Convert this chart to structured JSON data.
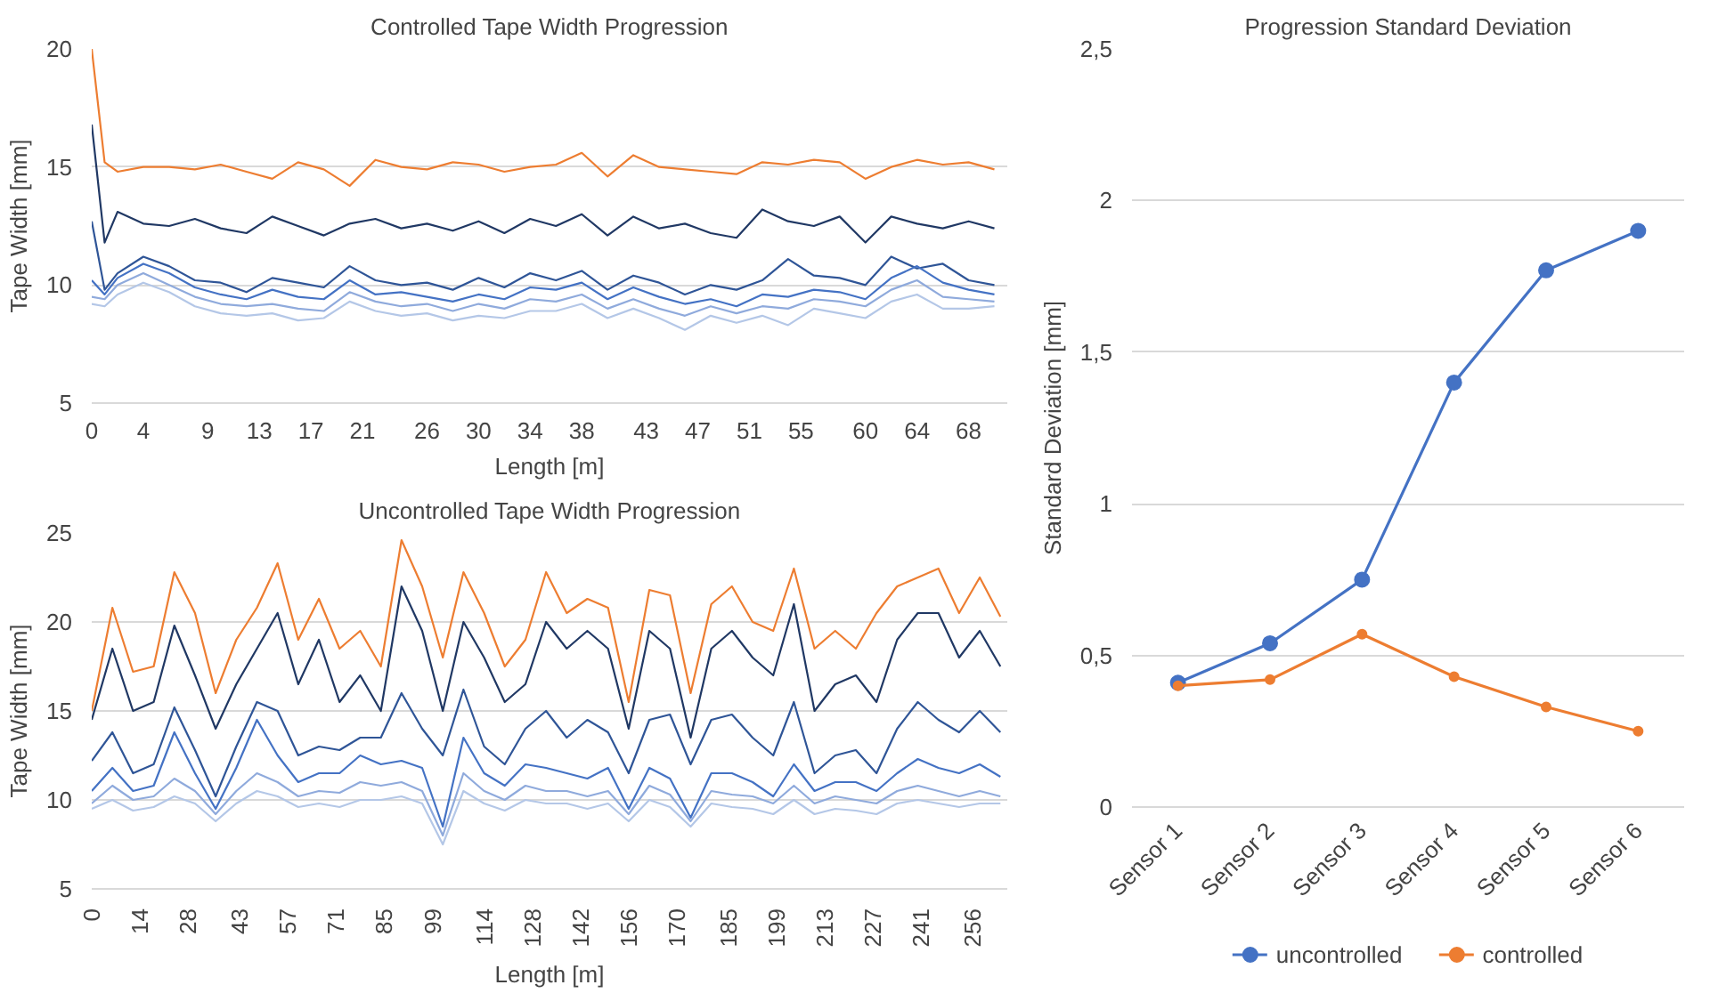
{
  "chart_data": [
    {
      "type": "line",
      "title": "Controlled Tape Width Progression",
      "xlabel": "Length [m]",
      "ylabel": "Tape Width [mm]",
      "xlim": [
        0,
        71
      ],
      "xticks": [
        0,
        4,
        9,
        13,
        17,
        21,
        26,
        30,
        34,
        38,
        43,
        47,
        51,
        55,
        60,
        64,
        68
      ],
      "ylim": [
        5,
        20
      ],
      "yticks": [
        5,
        10,
        15,
        20
      ],
      "grid": "y",
      "legend": false,
      "marker": "none",
      "line_style": "solid",
      "x": [
        0,
        1,
        2,
        4,
        6,
        8,
        10,
        12,
        14,
        16,
        18,
        20,
        22,
        24,
        26,
        28,
        30,
        32,
        34,
        36,
        38,
        40,
        42,
        44,
        46,
        48,
        50,
        52,
        54,
        56,
        58,
        60,
        62,
        64,
        66,
        68,
        70
      ],
      "series": [
        {
          "color": "#ed7d31",
          "values": [
            20,
            15.2,
            14.8,
            15,
            15,
            14.9,
            15.1,
            14.8,
            14.5,
            15.2,
            14.9,
            14.2,
            15.3,
            15,
            14.9,
            15.2,
            15.1,
            14.8,
            15,
            15.1,
            15.6,
            14.6,
            15.5,
            15,
            14.9,
            14.8,
            14.7,
            15.2,
            15.1,
            15.3,
            15.2,
            14.5,
            15,
            15.3,
            15.1,
            15.2,
            14.9
          ]
        },
        {
          "color": "#203864",
          "values": [
            16.8,
            11.8,
            13.1,
            12.6,
            12.5,
            12.8,
            12.4,
            12.2,
            12.9,
            12.5,
            12.1,
            12.6,
            12.8,
            12.4,
            12.6,
            12.3,
            12.7,
            12.2,
            12.8,
            12.5,
            13,
            12.1,
            12.9,
            12.4,
            12.6,
            12.2,
            12,
            13.2,
            12.7,
            12.5,
            12.9,
            11.8,
            12.9,
            12.6,
            12.4,
            12.7,
            12.4
          ]
        },
        {
          "color": "#2f5597",
          "values": [
            12.7,
            9.8,
            10.5,
            11.2,
            10.8,
            10.2,
            10.1,
            9.7,
            10.3,
            10.1,
            9.9,
            10.8,
            10.2,
            10,
            10.1,
            9.8,
            10.3,
            9.9,
            10.5,
            10.2,
            10.6,
            9.8,
            10.4,
            10.1,
            9.6,
            10,
            9.8,
            10.2,
            11.1,
            10.4,
            10.3,
            10,
            11.2,
            10.7,
            10.9,
            10.2,
            10
          ]
        },
        {
          "color": "#4472c4",
          "values": [
            10.2,
            9.6,
            10.3,
            10.9,
            10.5,
            9.9,
            9.6,
            9.4,
            9.8,
            9.5,
            9.4,
            10.2,
            9.6,
            9.7,
            9.5,
            9.3,
            9.6,
            9.4,
            9.9,
            9.8,
            10.1,
            9.4,
            9.9,
            9.5,
            9.2,
            9.4,
            9.1,
            9.6,
            9.5,
            9.8,
            9.7,
            9.4,
            10.3,
            10.8,
            10.1,
            9.8,
            9.6
          ]
        },
        {
          "color": "#8faadc",
          "values": [
            9.5,
            9.4,
            10,
            10.5,
            10,
            9.5,
            9.2,
            9.1,
            9.2,
            9,
            8.9,
            9.7,
            9.3,
            9.1,
            9.2,
            8.9,
            9.2,
            9,
            9.4,
            9.3,
            9.6,
            9,
            9.4,
            9,
            8.7,
            9.1,
            8.8,
            9.1,
            9,
            9.4,
            9.3,
            9.1,
            9.8,
            10.2,
            9.5,
            9.4,
            9.3
          ]
        },
        {
          "color": "#b4c7e7",
          "values": [
            9.2,
            9.1,
            9.6,
            10.1,
            9.7,
            9.1,
            8.8,
            8.7,
            8.8,
            8.5,
            8.6,
            9.3,
            8.9,
            8.7,
            8.8,
            8.5,
            8.7,
            8.6,
            8.9,
            8.9,
            9.2,
            8.6,
            9,
            8.6,
            8.1,
            8.7,
            8.4,
            8.7,
            8.3,
            9,
            8.8,
            8.6,
            9.3,
            9.6,
            9,
            9,
            9.1
          ]
        }
      ]
    },
    {
      "type": "line",
      "title": "Uncontrolled Tape Width Progression",
      "xlabel": "Length [m]",
      "ylabel": "Tape Width [mm]",
      "xlim": [
        0,
        266
      ],
      "xticks": [
        0,
        14,
        28,
        43,
        57,
        71,
        85,
        99,
        114,
        128,
        142,
        156,
        170,
        185,
        199,
        213,
        227,
        241,
        256
      ],
      "ylim": [
        5,
        25
      ],
      "yticks": [
        5,
        10,
        15,
        20,
        25
      ],
      "grid": "y",
      "legend": false,
      "marker": "none",
      "line_style": "solid",
      "x": [
        0,
        6,
        12,
        18,
        24,
        30,
        36,
        42,
        48,
        54,
        60,
        66,
        72,
        78,
        84,
        90,
        96,
        102,
        108,
        114,
        120,
        126,
        132,
        138,
        144,
        150,
        156,
        162,
        168,
        174,
        180,
        186,
        192,
        198,
        204,
        210,
        216,
        222,
        228,
        234,
        240,
        246,
        252,
        258,
        264
      ],
      "series": [
        {
          "color": "#ed7d31",
          "values": [
            15,
            20.8,
            17.2,
            17.5,
            22.8,
            20.5,
            16,
            19,
            20.8,
            23.3,
            19,
            21.3,
            18.5,
            19.5,
            17.5,
            24.6,
            22,
            18,
            22.8,
            20.5,
            17.5,
            19,
            22.8,
            20.5,
            21.3,
            20.8,
            15.5,
            21.8,
            21.5,
            16,
            21,
            22,
            20,
            19.5,
            23,
            18.5,
            19.5,
            18.5,
            20.5,
            22,
            22.5,
            23,
            20.5,
            22.5,
            20.3
          ]
        },
        {
          "color": "#203864",
          "values": [
            14.5,
            18.5,
            15,
            15.5,
            19.8,
            17,
            14,
            16.5,
            18.5,
            20.5,
            16.5,
            19,
            15.5,
            17,
            15,
            22,
            19.5,
            15,
            20,
            18,
            15.5,
            16.5,
            20,
            18.5,
            19.5,
            18.5,
            14,
            19.5,
            18.5,
            13.5,
            18.5,
            19.5,
            18,
            17,
            21,
            15,
            16.5,
            17,
            15.5,
            19,
            20.5,
            20.5,
            18,
            19.5,
            17.5
          ]
        },
        {
          "color": "#2f5597",
          "values": [
            12.2,
            13.8,
            11.5,
            12,
            15.2,
            12.8,
            10.2,
            13,
            15.5,
            15,
            12.5,
            13,
            12.8,
            13.5,
            13.5,
            16,
            14,
            12.5,
            16.2,
            13,
            12,
            14,
            15,
            13.5,
            14.5,
            13.8,
            11.5,
            14.5,
            14.8,
            12,
            14.5,
            14.8,
            13.5,
            12.5,
            15.5,
            11.5,
            12.5,
            12.8,
            11.5,
            14,
            15.5,
            14.5,
            13.8,
            15,
            13.8
          ]
        },
        {
          "color": "#4472c4",
          "values": [
            10.5,
            11.8,
            10.5,
            10.8,
            13.8,
            11.5,
            9.5,
            11.8,
            14.5,
            12.5,
            11,
            11.5,
            11.5,
            12.5,
            12,
            12.2,
            11.8,
            8.5,
            13.5,
            11.5,
            10.8,
            12,
            11.8,
            11.5,
            11.2,
            11.8,
            9.5,
            11.8,
            11.2,
            9,
            11.5,
            11.5,
            11,
            10.2,
            12,
            10.5,
            11,
            11,
            10.5,
            11.5,
            12.3,
            11.8,
            11.5,
            12,
            11.3
          ]
        },
        {
          "color": "#8faadc",
          "values": [
            9.8,
            10.8,
            10,
            10.2,
            11.2,
            10.5,
            9.2,
            10.5,
            11.5,
            11,
            10.2,
            10.5,
            10.4,
            11,
            10.8,
            11,
            10.5,
            8,
            11.5,
            10.5,
            10,
            10.8,
            10.5,
            10.5,
            10.2,
            10.5,
            9.2,
            10.8,
            10.3,
            8.8,
            10.5,
            10.3,
            10.2,
            9.8,
            10.8,
            9.8,
            10.2,
            10,
            9.8,
            10.5,
            10.8,
            10.5,
            10.2,
            10.5,
            10.2
          ]
        },
        {
          "color": "#b4c7e7",
          "values": [
            9.5,
            10,
            9.4,
            9.6,
            10.2,
            9.8,
            8.8,
            9.8,
            10.5,
            10.2,
            9.6,
            9.8,
            9.6,
            10,
            10,
            10.2,
            9.8,
            7.5,
            10.5,
            9.8,
            9.4,
            10,
            9.8,
            9.8,
            9.5,
            9.8,
            8.8,
            10,
            9.6,
            8.5,
            9.8,
            9.6,
            9.5,
            9.2,
            10,
            9.2,
            9.5,
            9.4,
            9.2,
            9.8,
            10,
            9.8,
            9.6,
            9.8,
            9.8
          ]
        }
      ]
    },
    {
      "type": "line",
      "title": "Progression Standard Deviation",
      "ylabel": "Standard Deviation [mm]",
      "categories": [
        "Sensor 1",
        "Sensor 2",
        "Sensor 3",
        "Sensor 4",
        "Sensor 5",
        "Sensor 6"
      ],
      "ylim": [
        0,
        2.5
      ],
      "yticks": [
        0,
        {
          "value": 0.5,
          "label": "0,5"
        },
        1,
        {
          "value": 1.5,
          "label": "1,5"
        },
        2,
        {
          "value": 2.5,
          "label": "2,5"
        }
      ],
      "grid": "y",
      "legend": "bottom",
      "marker": "circle",
      "line_style": "solid",
      "series": [
        {
          "name": "uncontrolled",
          "color": "#4472c4",
          "values": [
            0.41,
            0.54,
            0.75,
            1.4,
            1.77,
            1.9
          ]
        },
        {
          "name": "controlled",
          "color": "#ed7d31",
          "values": [
            0.4,
            0.42,
            0.57,
            0.43,
            0.33,
            0.25
          ]
        }
      ]
    }
  ]
}
